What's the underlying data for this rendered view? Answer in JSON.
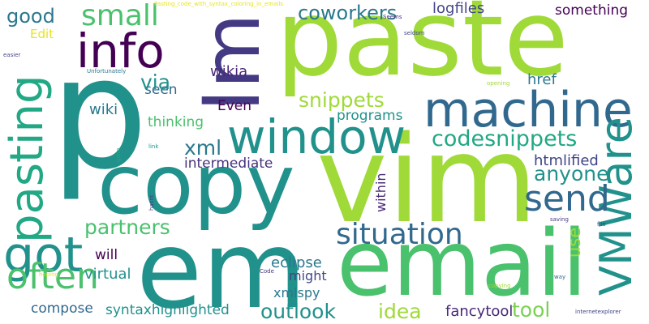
{
  "words": {
    "p": "p",
    "paste": "paste",
    "vim": "vim",
    "copy": "copy",
    "em": "em",
    "email": "email",
    "Im": "Im",
    "window": "window",
    "machine": "machine",
    "VMWare": "VMWare",
    "info": "info",
    "pasting": "pasting",
    "got": "got",
    "often": "often",
    "send": "send",
    "situation": "situation",
    "small": "small",
    "good": "good",
    "coworkers": "coworkers",
    "logfiles": "logfiles",
    "something": "something",
    "snippets": "snippets",
    "codesnippets": "codesnippets",
    "anyone": "anyone",
    "htmlified": "htmlified",
    "intermediate": "intermediate",
    "xml": "xml",
    "partners": "partners",
    "outlook": "outlook",
    "idea": "idea",
    "tool": "tool",
    "fancytool": "fancytool",
    "eclipse": "eclipse",
    "might": "might",
    "xmlspy": "xmlspy",
    "virtual": "virtual",
    "will": "will",
    "compose": "compose",
    "syntaxhighlighted": "syntaxhighlighted",
    "use": "use",
    "href": "href",
    "programs": "programs",
    "Even": "Even",
    "thinking": "thinking",
    "seen": "seen",
    "wiki": "wiki",
    "wikia": "wikia",
    "via": "via",
    "within": "within",
    "Edit": "Edit"
  },
  "tiny_words": {
    "t1": "Pasting_code_with_syntax_coloring_in_emails",
    "t2": "Seems",
    "t3": "seldom",
    "t4": "easier",
    "t5": "Unfortunately",
    "t6": "opening",
    "t7": "link",
    "t8": "gvim",
    "t9": "hasnt",
    "t10": "saving",
    "t11": "file",
    "t12": "hoping",
    "t13": "Code",
    "t14": "way",
    "t15": "copying",
    "t16": "internetexplorer"
  },
  "palette": [
    "#440154",
    "#482878",
    "#3e4989",
    "#31688e",
    "#26828e",
    "#1f9e89",
    "#35b779",
    "#6ece58",
    "#b5de2b",
    "#fde725"
  ]
}
